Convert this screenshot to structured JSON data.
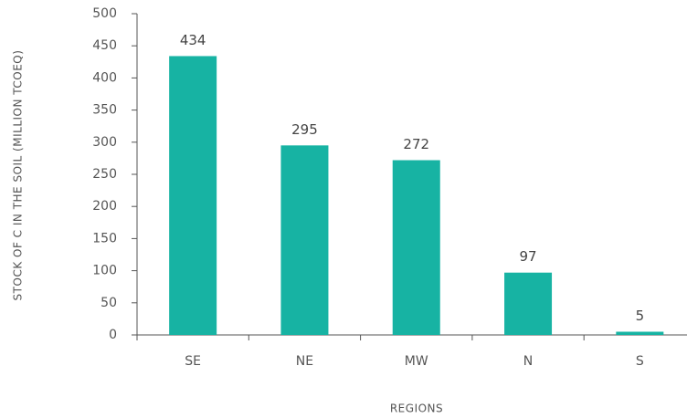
{
  "chart_data": {
    "type": "bar",
    "xlabel": "REGIONS",
    "ylabel": "STOCK OF C IN THE SOIL (MILLION TCOEQ)",
    "categories": [
      "SE",
      "NE",
      "MW",
      "N",
      "S"
    ],
    "values": [
      434,
      295,
      272,
      97,
      5
    ],
    "color": "#17b3a3",
    "ylim": [
      0,
      500
    ],
    "yticks": [
      0,
      50,
      100,
      150,
      200,
      250,
      300,
      350,
      400,
      450,
      500
    ],
    "grid": false
  }
}
